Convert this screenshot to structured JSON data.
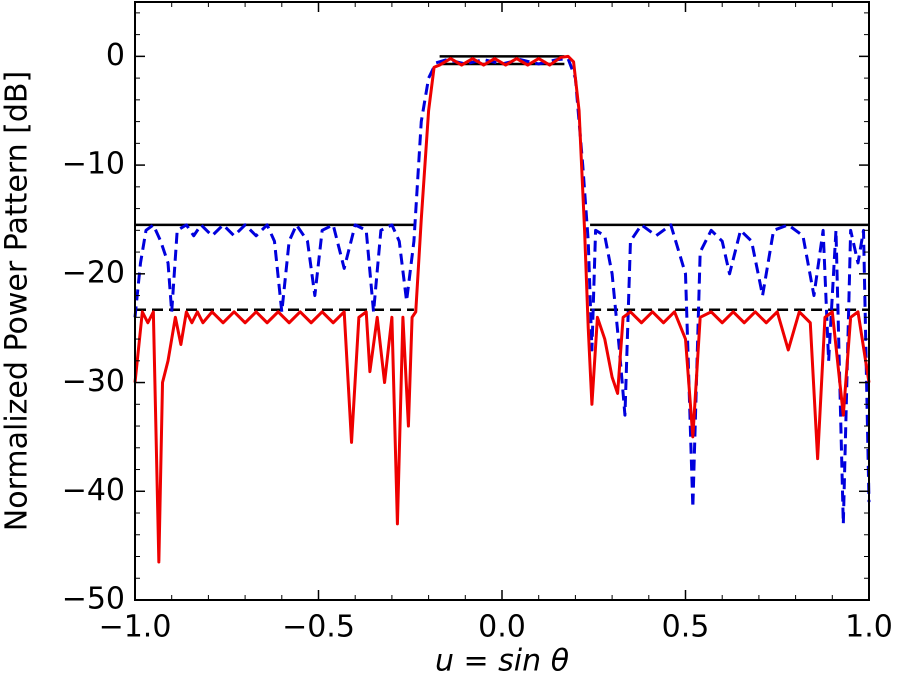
{
  "chart_data": {
    "type": "line",
    "xlabel": "u = sin θ",
    "ylabel": "Normalized Power Pattern [dB]",
    "xlim": [
      -1.0,
      1.0
    ],
    "ylim": [
      -50,
      5
    ],
    "xticks": [
      {
        "value": -1.0,
        "label": "−1.0"
      },
      {
        "value": -0.5,
        "label": "−0.5"
      },
      {
        "value": 0,
        "label": "0.0"
      },
      {
        "value": 0.5,
        "label": "0.5"
      },
      {
        "value": 1.0,
        "label": "1.0"
      }
    ],
    "yticks": [
      {
        "value": -50,
        "label": "−50"
      },
      {
        "value": -40,
        "label": "−40"
      },
      {
        "value": -30,
        "label": "−30"
      },
      {
        "value": -20,
        "label": "−20"
      },
      {
        "value": -10,
        "label": "−10"
      },
      0
    ],
    "xminorticks": [
      -0.9,
      -0.8,
      -0.7,
      -0.6,
      -0.4,
      -0.3,
      -0.2,
      -0.1,
      0.1,
      0.2,
      0.3,
      0.4,
      0.6,
      0.7,
      0.8,
      0.9
    ],
    "yminorticks": [
      -48,
      -46,
      -44,
      -42,
      -38,
      -36,
      -34,
      -32,
      -28,
      -26,
      -24,
      -22,
      -18,
      -16,
      -14,
      -12,
      -8,
      -6,
      -4,
      -2,
      2,
      4
    ],
    "series": [
      {
        "color": "#000000",
        "style": "solid",
        "x": [
          -1.0,
          -0.24,
          0,
          0.24,
          1.0
        ],
        "values": [
          -15.5,
          -15.5,
          null,
          -15.5,
          -15.5
        ]
      },
      {
        "color": "#000000",
        "style": "dashed",
        "x": [
          -1.0,
          -0.24,
          0,
          0.24,
          1.0
        ],
        "values": [
          -23.3,
          -23.3,
          null,
          -23.3,
          -23.3
        ]
      },
      {
        "color": "#000000",
        "style": "solid",
        "x": [
          -0.17,
          0.17
        ],
        "values": [
          0,
          0
        ]
      },
      {
        "color": "#000000",
        "style": "solid",
        "x": [
          -0.17,
          0.17
        ],
        "values": [
          -0.7,
          -0.7
        ]
      },
      {
        "color": "#0000dd",
        "style": "dashed",
        "x": [
          -1.0,
          -0.985,
          -0.97,
          -0.95,
          -0.93,
          -0.91,
          -0.9,
          -0.885,
          -0.86,
          -0.84,
          -0.82,
          -0.79,
          -0.76,
          -0.73,
          -0.7,
          -0.67,
          -0.64,
          -0.62,
          -0.6,
          -0.58,
          -0.56,
          -0.53,
          -0.51,
          -0.49,
          -0.46,
          -0.43,
          -0.4,
          -0.37,
          -0.35,
          -0.33,
          -0.3,
          -0.28,
          -0.26,
          -0.24,
          -0.22,
          -0.2,
          -0.18,
          -0.15,
          -0.1,
          -0.05,
          0,
          0.05,
          0.1,
          0.15,
          0.18,
          0.2,
          0.22,
          0.235,
          0.245,
          0.255,
          0.28,
          0.3,
          0.32,
          0.335,
          0.35,
          0.38,
          0.42,
          0.46,
          0.5,
          0.52,
          0.54,
          0.57,
          0.6,
          0.62,
          0.65,
          0.68,
          0.71,
          0.74,
          0.78,
          0.82,
          0.85,
          0.875,
          0.89,
          0.91,
          0.93,
          0.95,
          0.97,
          0.985,
          1.0
        ],
        "values": [
          -24,
          -19,
          -16,
          -15.5,
          -17,
          -19,
          -23.5,
          -16,
          -15.5,
          -16.5,
          -15.5,
          -16.5,
          -15.5,
          -16.5,
          -15.5,
          -16.5,
          -15.5,
          -17,
          -23.5,
          -17,
          -15.5,
          -17,
          -22,
          -16,
          -15.5,
          -19.5,
          -15.5,
          -16,
          -23.5,
          -16,
          -15.5,
          -17,
          -22.5,
          -17,
          -6,
          -2,
          -0.6,
          -0.3,
          -0.7,
          -0.3,
          -0.7,
          -0.3,
          -0.7,
          -0.3,
          -0.2,
          -2,
          -10,
          -17,
          -27,
          -16,
          -16.5,
          -20,
          -27,
          -33,
          -17,
          -15.5,
          -16.5,
          -15.5,
          -20,
          -41.5,
          -18,
          -16,
          -17,
          -20,
          -16,
          -17,
          -22,
          -16,
          -15.5,
          -16.5,
          -22,
          -16,
          -28,
          -16,
          -43,
          -16,
          -19,
          -16,
          -41
        ]
      },
      {
        "color": "#ee0000",
        "style": "solid",
        "x": [
          -1.0,
          -0.98,
          -0.965,
          -0.95,
          -0.935,
          -0.925,
          -0.91,
          -0.89,
          -0.875,
          -0.86,
          -0.845,
          -0.83,
          -0.815,
          -0.79,
          -0.76,
          -0.73,
          -0.7,
          -0.67,
          -0.64,
          -0.61,
          -0.58,
          -0.55,
          -0.52,
          -0.49,
          -0.46,
          -0.43,
          -0.41,
          -0.39,
          -0.37,
          -0.36,
          -0.34,
          -0.32,
          -0.3,
          -0.285,
          -0.27,
          -0.255,
          -0.245,
          -0.235,
          -0.22,
          -0.2,
          -0.185,
          -0.17,
          -0.14,
          -0.11,
          -0.08,
          -0.05,
          -0.02,
          0.01,
          0.04,
          0.07,
          0.1,
          0.13,
          0.16,
          0.18,
          0.195,
          0.21,
          0.225,
          0.235,
          0.245,
          0.26,
          0.28,
          0.3,
          0.315,
          0.33,
          0.35,
          0.38,
          0.41,
          0.44,
          0.47,
          0.5,
          0.52,
          0.54,
          0.57,
          0.6,
          0.63,
          0.66,
          0.69,
          0.72,
          0.75,
          0.78,
          0.81,
          0.84,
          0.86,
          0.88,
          0.9,
          0.93,
          0.95,
          0.97,
          1.0
        ],
        "values": [
          -30,
          -23.5,
          -24.5,
          -23.5,
          -46.5,
          -30,
          -28,
          -24,
          -26.5,
          -23.5,
          -24.5,
          -23.5,
          -24.5,
          -23.5,
          -24.5,
          -23.5,
          -24.5,
          -23.5,
          -24.5,
          -23.5,
          -24.5,
          -23.5,
          -24.5,
          -23.5,
          -24.5,
          -23.5,
          -35.5,
          -24,
          -23.5,
          -29,
          -24,
          -30,
          -24,
          -43,
          -24,
          -34,
          -24,
          -23.5,
          -15,
          -5,
          -1,
          -0.8,
          -0.2,
          -0.8,
          -0.2,
          -0.8,
          -0.2,
          -0.8,
          -0.2,
          -0.8,
          -0.2,
          -0.8,
          -0.1,
          0,
          -0.5,
          -5,
          -16,
          -25,
          -32,
          -24,
          -26,
          -29.5,
          -31,
          -24,
          -23.5,
          -24.5,
          -23.5,
          -24.5,
          -23.5,
          -26,
          -35,
          -24,
          -23.5,
          -24.5,
          -23.5,
          -24.5,
          -23.5,
          -24.5,
          -23.5,
          -27,
          -23.5,
          -24.5,
          -37,
          -24,
          -23.5,
          -33,
          -24,
          -23.5,
          -30
        ]
      }
    ]
  }
}
